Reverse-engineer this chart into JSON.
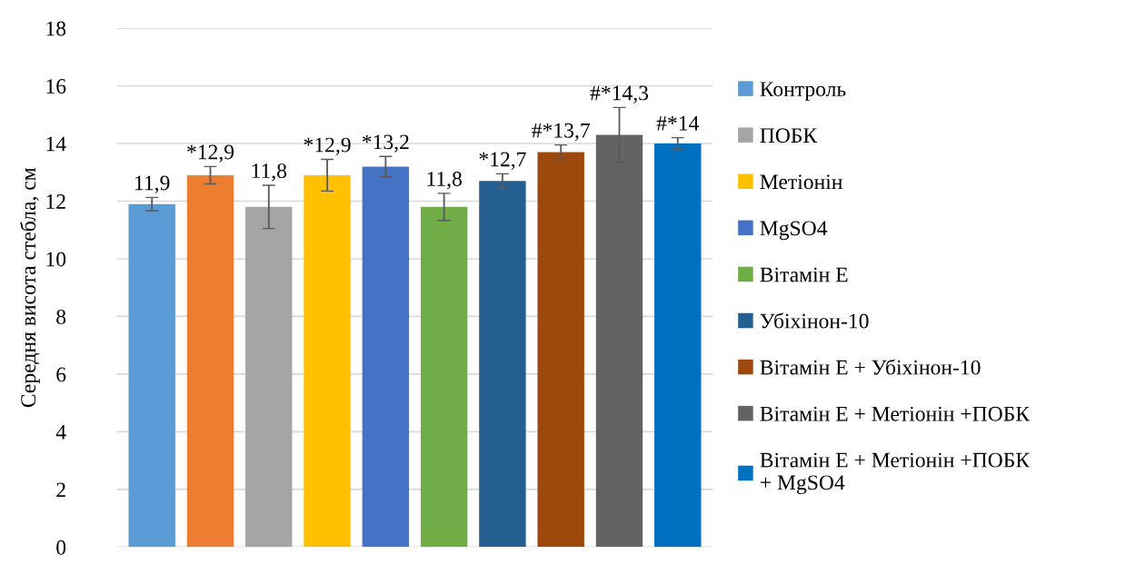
{
  "chart_data": {
    "type": "bar",
    "ylabel": "Середня висота стебла, см",
    "categories": [
      null,
      null,
      null,
      null,
      null,
      null,
      null,
      null,
      null,
      null
    ],
    "series": [
      {
        "name": "Контроль",
        "color": "#5b9bd5",
        "values": [
          11.9,
          null,
          null,
          null,
          null,
          null,
          null,
          null,
          null,
          null
        ],
        "errors": [
          0.23,
          null,
          null,
          null,
          null,
          null,
          null,
          null,
          null,
          null
        ],
        "value_labels": [
          "11,9",
          null,
          null,
          null,
          null,
          null,
          null,
          null,
          null,
          null
        ]
      },
      {
        "color": "#ed7d31",
        "values": [
          null,
          12.9,
          null,
          null,
          null,
          null,
          null,
          null,
          null,
          null
        ],
        "errors": [
          null,
          0.3,
          null,
          null,
          null,
          null,
          null,
          null,
          null,
          null
        ],
        "value_labels": [
          null,
          "*12,9",
          null,
          null,
          null,
          null,
          null,
          null,
          null,
          null
        ]
      },
      {
        "name": "ПОБК",
        "color": "#a5a5a5",
        "values": [
          null,
          null,
          11.8,
          null,
          null,
          null,
          null,
          null,
          null,
          null
        ],
        "errors": [
          null,
          null,
          0.75,
          null,
          null,
          null,
          null,
          null,
          null,
          null
        ],
        "value_labels": [
          null,
          null,
          "11,8",
          null,
          null,
          null,
          null,
          null,
          null,
          null
        ]
      },
      {
        "name": "Метіонін",
        "color": "#ffc000",
        "values": [
          null,
          null,
          null,
          12.9,
          null,
          null,
          null,
          null,
          null,
          null
        ],
        "errors": [
          null,
          null,
          null,
          0.55,
          null,
          null,
          null,
          null,
          null,
          null
        ],
        "value_labels": [
          null,
          null,
          null,
          "*12,9",
          null,
          null,
          null,
          null,
          null,
          null
        ]
      },
      {
        "name": "MgSO4",
        "color": "#4472c4",
        "values": [
          null,
          null,
          null,
          null,
          13.2,
          null,
          null,
          null,
          null,
          null
        ],
        "errors": [
          null,
          null,
          null,
          null,
          0.35,
          null,
          null,
          null,
          null,
          null
        ],
        "value_labels": [
          null,
          null,
          null,
          null,
          "*13,2",
          null,
          null,
          null,
          null,
          null
        ]
      },
      {
        "name": "Вітамін Е",
        "color": "#70ad47",
        "values": [
          null,
          null,
          null,
          null,
          null,
          11.8,
          null,
          null,
          null,
          null
        ],
        "errors": [
          null,
          null,
          null,
          null,
          null,
          0.47,
          null,
          null,
          null,
          null
        ],
        "value_labels": [
          null,
          null,
          null,
          null,
          null,
          "11,8",
          null,
          null,
          null,
          null
        ]
      },
      {
        "name": "Убіхінон-10",
        "color": "#255e91",
        "values": [
          null,
          null,
          null,
          null,
          null,
          null,
          12.7,
          null,
          null,
          null
        ],
        "errors": [
          null,
          null,
          null,
          null,
          null,
          null,
          0.25,
          null,
          null,
          null
        ],
        "value_labels": [
          null,
          null,
          null,
          null,
          null,
          null,
          "*12,7",
          null,
          null,
          null
        ]
      },
      {
        "name": "Вітамін Е + Убіхінон-10",
        "color": "#9e480e",
        "values": [
          null,
          null,
          null,
          null,
          null,
          null,
          null,
          13.7,
          null,
          null
        ],
        "errors": [
          null,
          null,
          null,
          null,
          null,
          null,
          null,
          0.25,
          null,
          null
        ],
        "value_labels": [
          null,
          null,
          null,
          null,
          null,
          null,
          null,
          "#*13,7",
          null,
          null
        ]
      },
      {
        "name": "Вітамін Е + Метіонін +ПОБК",
        "color": "#636363",
        "values": [
          null,
          null,
          null,
          null,
          null,
          null,
          null,
          null,
          14.3,
          null
        ],
        "errors": [
          null,
          null,
          null,
          null,
          null,
          null,
          null,
          null,
          0.95,
          null
        ],
        "value_labels": [
          null,
          null,
          null,
          null,
          null,
          null,
          null,
          null,
          "#*14,3",
          null
        ]
      },
      {
        "name": "Вітамін Е + Метіонін +ПОБК\n+ MgSO4",
        "color": "#0070c0",
        "values": [
          null,
          null,
          null,
          null,
          null,
          null,
          null,
          null,
          null,
          14
        ],
        "errors": [
          null,
          null,
          null,
          null,
          null,
          null,
          null,
          null,
          null,
          0.2
        ],
        "value_labels": [
          null,
          null,
          null,
          null,
          null,
          null,
          null,
          null,
          null,
          "#*14"
        ]
      }
    ],
    "ylim": [
      0,
      18
    ],
    "yticks": [
      0,
      2,
      4,
      6,
      8,
      10,
      12,
      14,
      16,
      18
    ],
    "grid": "y",
    "legend": "right"
  }
}
